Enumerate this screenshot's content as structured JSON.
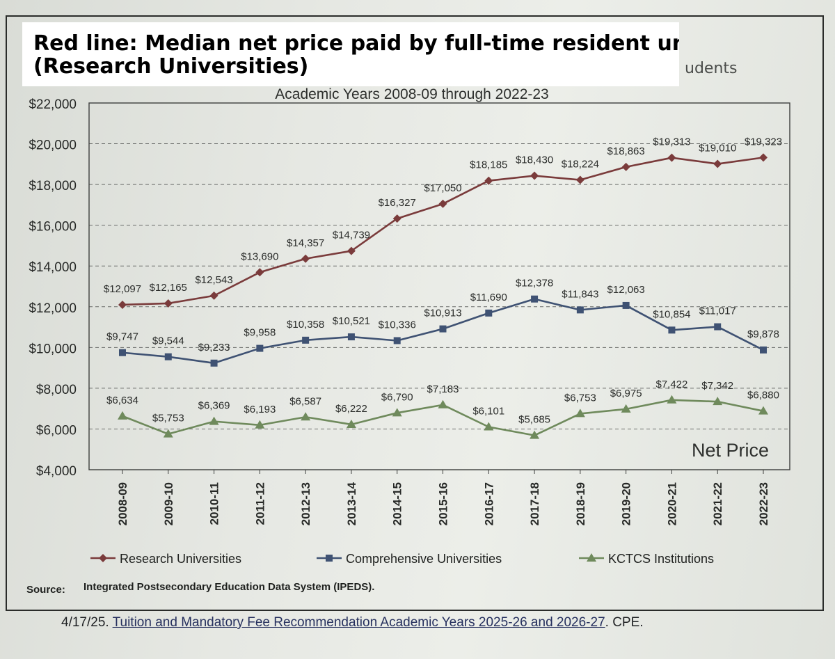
{
  "overlay": {
    "line1": "Red line: Median net price paid by full-time resident undergrad",
    "line2": "(Research Universities)"
  },
  "peek_text": "udents",
  "footer": {
    "date": "4/17/25.",
    "link": "Tuition and Mandatory Fee Recommendation Academic Years 2025-26 and 2026-27",
    "suffix": ". CPE."
  },
  "chart_data": {
    "type": "line",
    "subtitle": "Academic Years 2008-09 through 2022-23",
    "watermark_label": "Net Price",
    "source_label": "Source:",
    "source_text": "Integrated Postsecondary Education Data System (IPEDS).",
    "categories": [
      "2008-09",
      "2009-10",
      "2010-11",
      "2011-12",
      "2012-13",
      "2013-14",
      "2014-15",
      "2015-16",
      "2016-17",
      "2017-18",
      "2018-19",
      "2019-20",
      "2020-21",
      "2021-22",
      "2022-23"
    ],
    "ylim": [
      4000,
      22000
    ],
    "yticks": [
      4000,
      6000,
      8000,
      10000,
      12000,
      14000,
      16000,
      18000,
      20000,
      22000
    ],
    "ytick_labels": [
      "$4,000",
      "$6,000",
      "$8,000",
      "$10,000",
      "$12,000",
      "$14,000",
      "$16,000",
      "$18,000",
      "$20,000",
      "$22,000"
    ],
    "grid": "dashed horizontal",
    "series": [
      {
        "name": "Research Universities",
        "color": "#7a3b3b",
        "marker": "diamond",
        "values": [
          12097,
          12165,
          12543,
          13690,
          14357,
          14739,
          16327,
          17050,
          18185,
          18430,
          18224,
          18863,
          19313,
          19010,
          19323
        ],
        "labels": [
          "$12,097",
          "$12,165",
          "$12,543",
          "$13,690",
          "$14,357",
          "$14,739",
          "$16,327",
          "$17,050",
          "$18,185",
          "$18,430",
          "$18,224",
          "$18,863",
          "$19,313",
          "$19,010",
          "$19,323"
        ]
      },
      {
        "name": "Comprehensive Universities",
        "color": "#3f5273",
        "marker": "square",
        "values": [
          9747,
          9544,
          9233,
          9958,
          10358,
          10521,
          10336,
          10913,
          11690,
          12378,
          11843,
          12063,
          10854,
          11017,
          9878
        ],
        "labels": [
          "$9,747",
          "$9,544",
          "$9,233",
          "$9,958",
          "$10,358",
          "$10,521",
          "$10,336",
          "$10,913",
          "$11,690",
          "$12,378",
          "$11,843",
          "$12,063",
          "$10,854",
          "$11,017",
          "$9,878"
        ]
      },
      {
        "name": "KCTCS Institutions",
        "color": "#6f8a5c",
        "marker": "triangle",
        "values": [
          6634,
          5753,
          6369,
          6193,
          6587,
          6222,
          6790,
          7183,
          6101,
          5685,
          6753,
          6975,
          7422,
          7342,
          6880
        ],
        "labels": [
          "$6,634",
          "$5,753",
          "$6,369",
          "$6,193",
          "$6,587",
          "$6,222",
          "$6,790",
          "$7,183",
          "$6,101",
          "$5,685",
          "$6,753",
          "$6,975",
          "$7,422",
          "$7,342",
          "$6,880"
        ]
      }
    ]
  }
}
